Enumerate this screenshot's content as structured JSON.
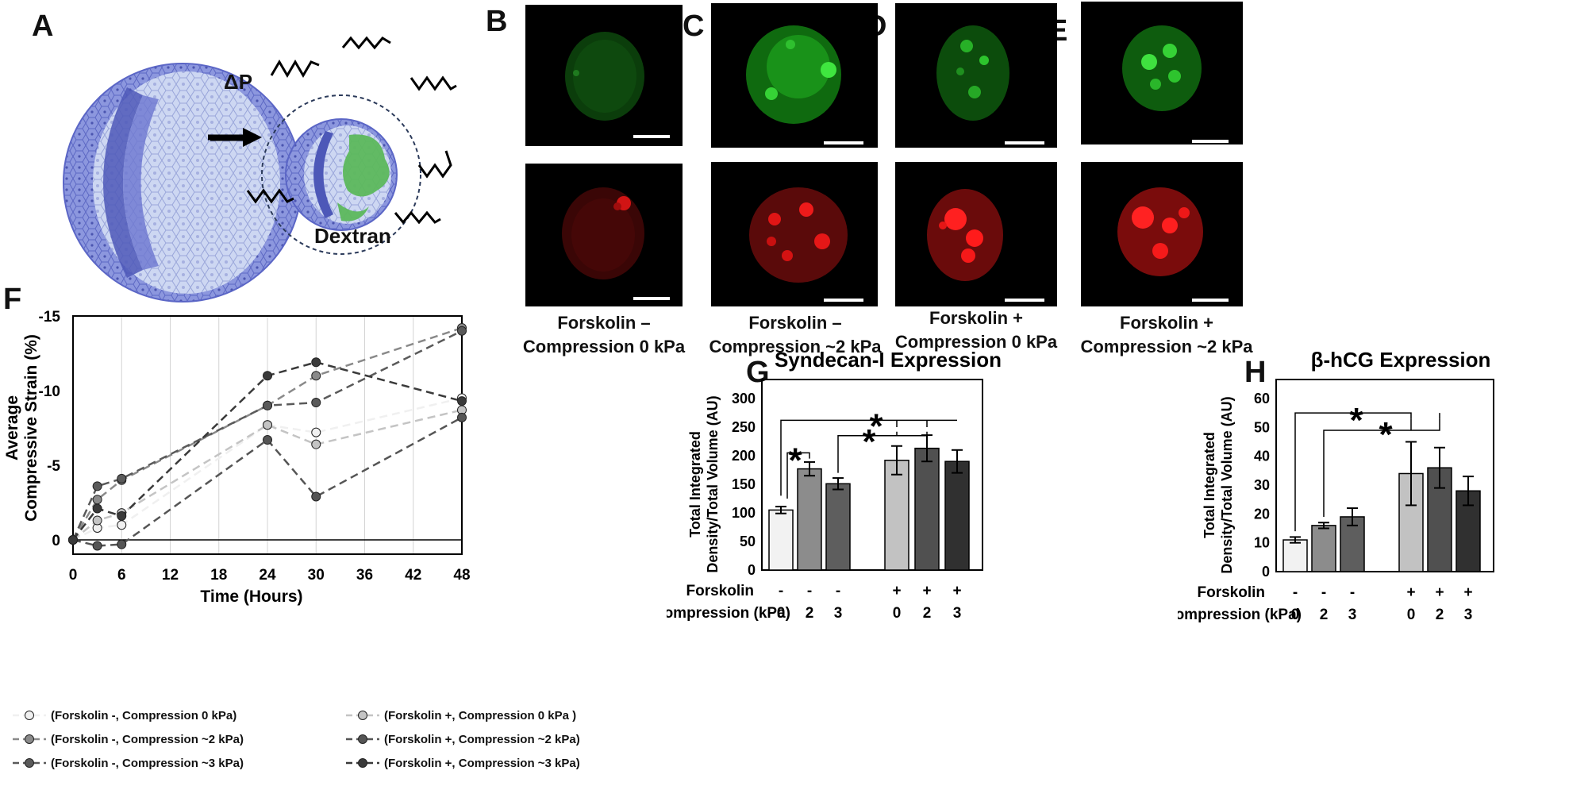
{
  "panels": {
    "a": "A",
    "b": "B",
    "c": "C",
    "d": "D",
    "e": "E",
    "f": "F",
    "g": "G",
    "h": "H"
  },
  "schematic": {
    "delta_p": "ΔP",
    "dextran": "Dextran"
  },
  "captions": {
    "b": [
      "Forskolin –",
      "Compression 0 kPa"
    ],
    "c": [
      "Forskolin –",
      "Compression ~2 kPa"
    ],
    "d": [
      "Forskolin +",
      "Compression 0 kPa"
    ],
    "e": [
      "Forskolin +",
      "Compression ~2 kPa"
    ]
  },
  "colors": {
    "green_channel": "#2bd22b",
    "red_channel": "#ff1a1a",
    "cell_blue": "#8e99e0",
    "cell_light": "#c9d4f0",
    "cell_dark": "#5b66c6",
    "dextran_green": "#5cb85c"
  },
  "chart_data": [
    {
      "id": "F",
      "type": "line",
      "xlabel": "Time (Hours)",
      "ylabel": [
        "Average",
        "Compressive Strain (%)"
      ],
      "xlim": [
        0,
        48
      ],
      "ylim": [
        0,
        -15
      ],
      "xticks": [
        "0",
        "6",
        "12",
        "18",
        "24",
        "30",
        "36",
        "42",
        "48"
      ],
      "yticks": [
        "-15",
        "-10",
        "-5",
        "0"
      ],
      "grid": "vertical",
      "x": [
        0,
        3,
        6,
        24,
        30,
        48
      ],
      "series": [
        {
          "name": "(Forskolin -, Compression 0 kPa)",
          "color": "#f0f0f0",
          "values": [
            0,
            -0.8,
            -1.0,
            -7.7,
            -7.2,
            -9.5
          ]
        },
        {
          "name": "(Forskolin -, Compression ~2 kPa)",
          "color": "#8a8a8a",
          "values": [
            0,
            -2.7,
            -4.0,
            -9.0,
            -11.0,
            -14.2
          ]
        },
        {
          "name": "(Forskolin -, Compression ~3 kPa)",
          "color": "#5a5a5a",
          "values": [
            0,
            -3.6,
            -4.1,
            -9.0,
            -9.2,
            -14.0
          ]
        },
        {
          "name": "(Forskolin +, Compression 0 kPa )",
          "color": "#c4c4c4",
          "values": [
            0,
            -1.3,
            -1.8,
            -7.7,
            -6.4,
            -8.7
          ]
        },
        {
          "name": "(Forskolin +, Compression ~2 kPa)",
          "color": "#555555",
          "values": [
            0,
            0.4,
            0.3,
            -6.7,
            -2.9,
            -8.2
          ]
        },
        {
          "name": "(Forskolin +, Compression ~3 kPa)",
          "color": "#3a3a3a",
          "values": [
            0,
            -2.1,
            -1.6,
            -11.0,
            -11.9,
            -9.3
          ]
        }
      ]
    },
    {
      "id": "G",
      "type": "bar",
      "title": "Syndecan-I Expression",
      "ylabel": [
        "Total Integrated",
        "Density/Total Volume (AU)"
      ],
      "ylim": [
        0,
        300
      ],
      "yticks": [
        "0",
        "50",
        "100",
        "150",
        "200",
        "250",
        "300"
      ],
      "row_labels": [
        "Forskolin",
        "Compression (kPa)"
      ],
      "forskolin": [
        "-",
        "-",
        "-",
        "+",
        "+",
        "+"
      ],
      "compression": [
        "0",
        "2",
        "3",
        "0",
        "2",
        "3"
      ],
      "values": [
        105,
        177,
        151,
        192,
        213,
        190
      ],
      "errors": [
        6,
        12,
        10,
        25,
        23,
        20
      ],
      "bar_colors": [
        "#f2f2f2",
        "#8c8c8c",
        "#5e5e5e",
        "#c2c2c2",
        "#505050",
        "#303030"
      ],
      "significance": [
        "*",
        "*",
        "*"
      ]
    },
    {
      "id": "H",
      "type": "bar",
      "title": "β-hCG Expression",
      "ylabel": [
        "Total Integrated",
        "Density/Total Volume (AU)"
      ],
      "ylim": [
        0,
        60
      ],
      "yticks": [
        "0",
        "10",
        "20",
        "30",
        "40",
        "50",
        "60"
      ],
      "row_labels": [
        "Forskolin",
        "Compression (kPa)"
      ],
      "forskolin": [
        "-",
        "-",
        "-",
        "+",
        "+",
        "+"
      ],
      "compression": [
        "0",
        "2",
        "3",
        "0",
        "2",
        "3"
      ],
      "values": [
        11,
        16,
        19,
        34,
        36,
        28
      ],
      "errors": [
        1,
        1,
        3,
        11,
        7,
        5
      ],
      "bar_colors": [
        "#f2f2f2",
        "#8c8c8c",
        "#5e5e5e",
        "#c2c2c2",
        "#505050",
        "#303030"
      ],
      "significance": [
        "*",
        "*"
      ]
    }
  ]
}
